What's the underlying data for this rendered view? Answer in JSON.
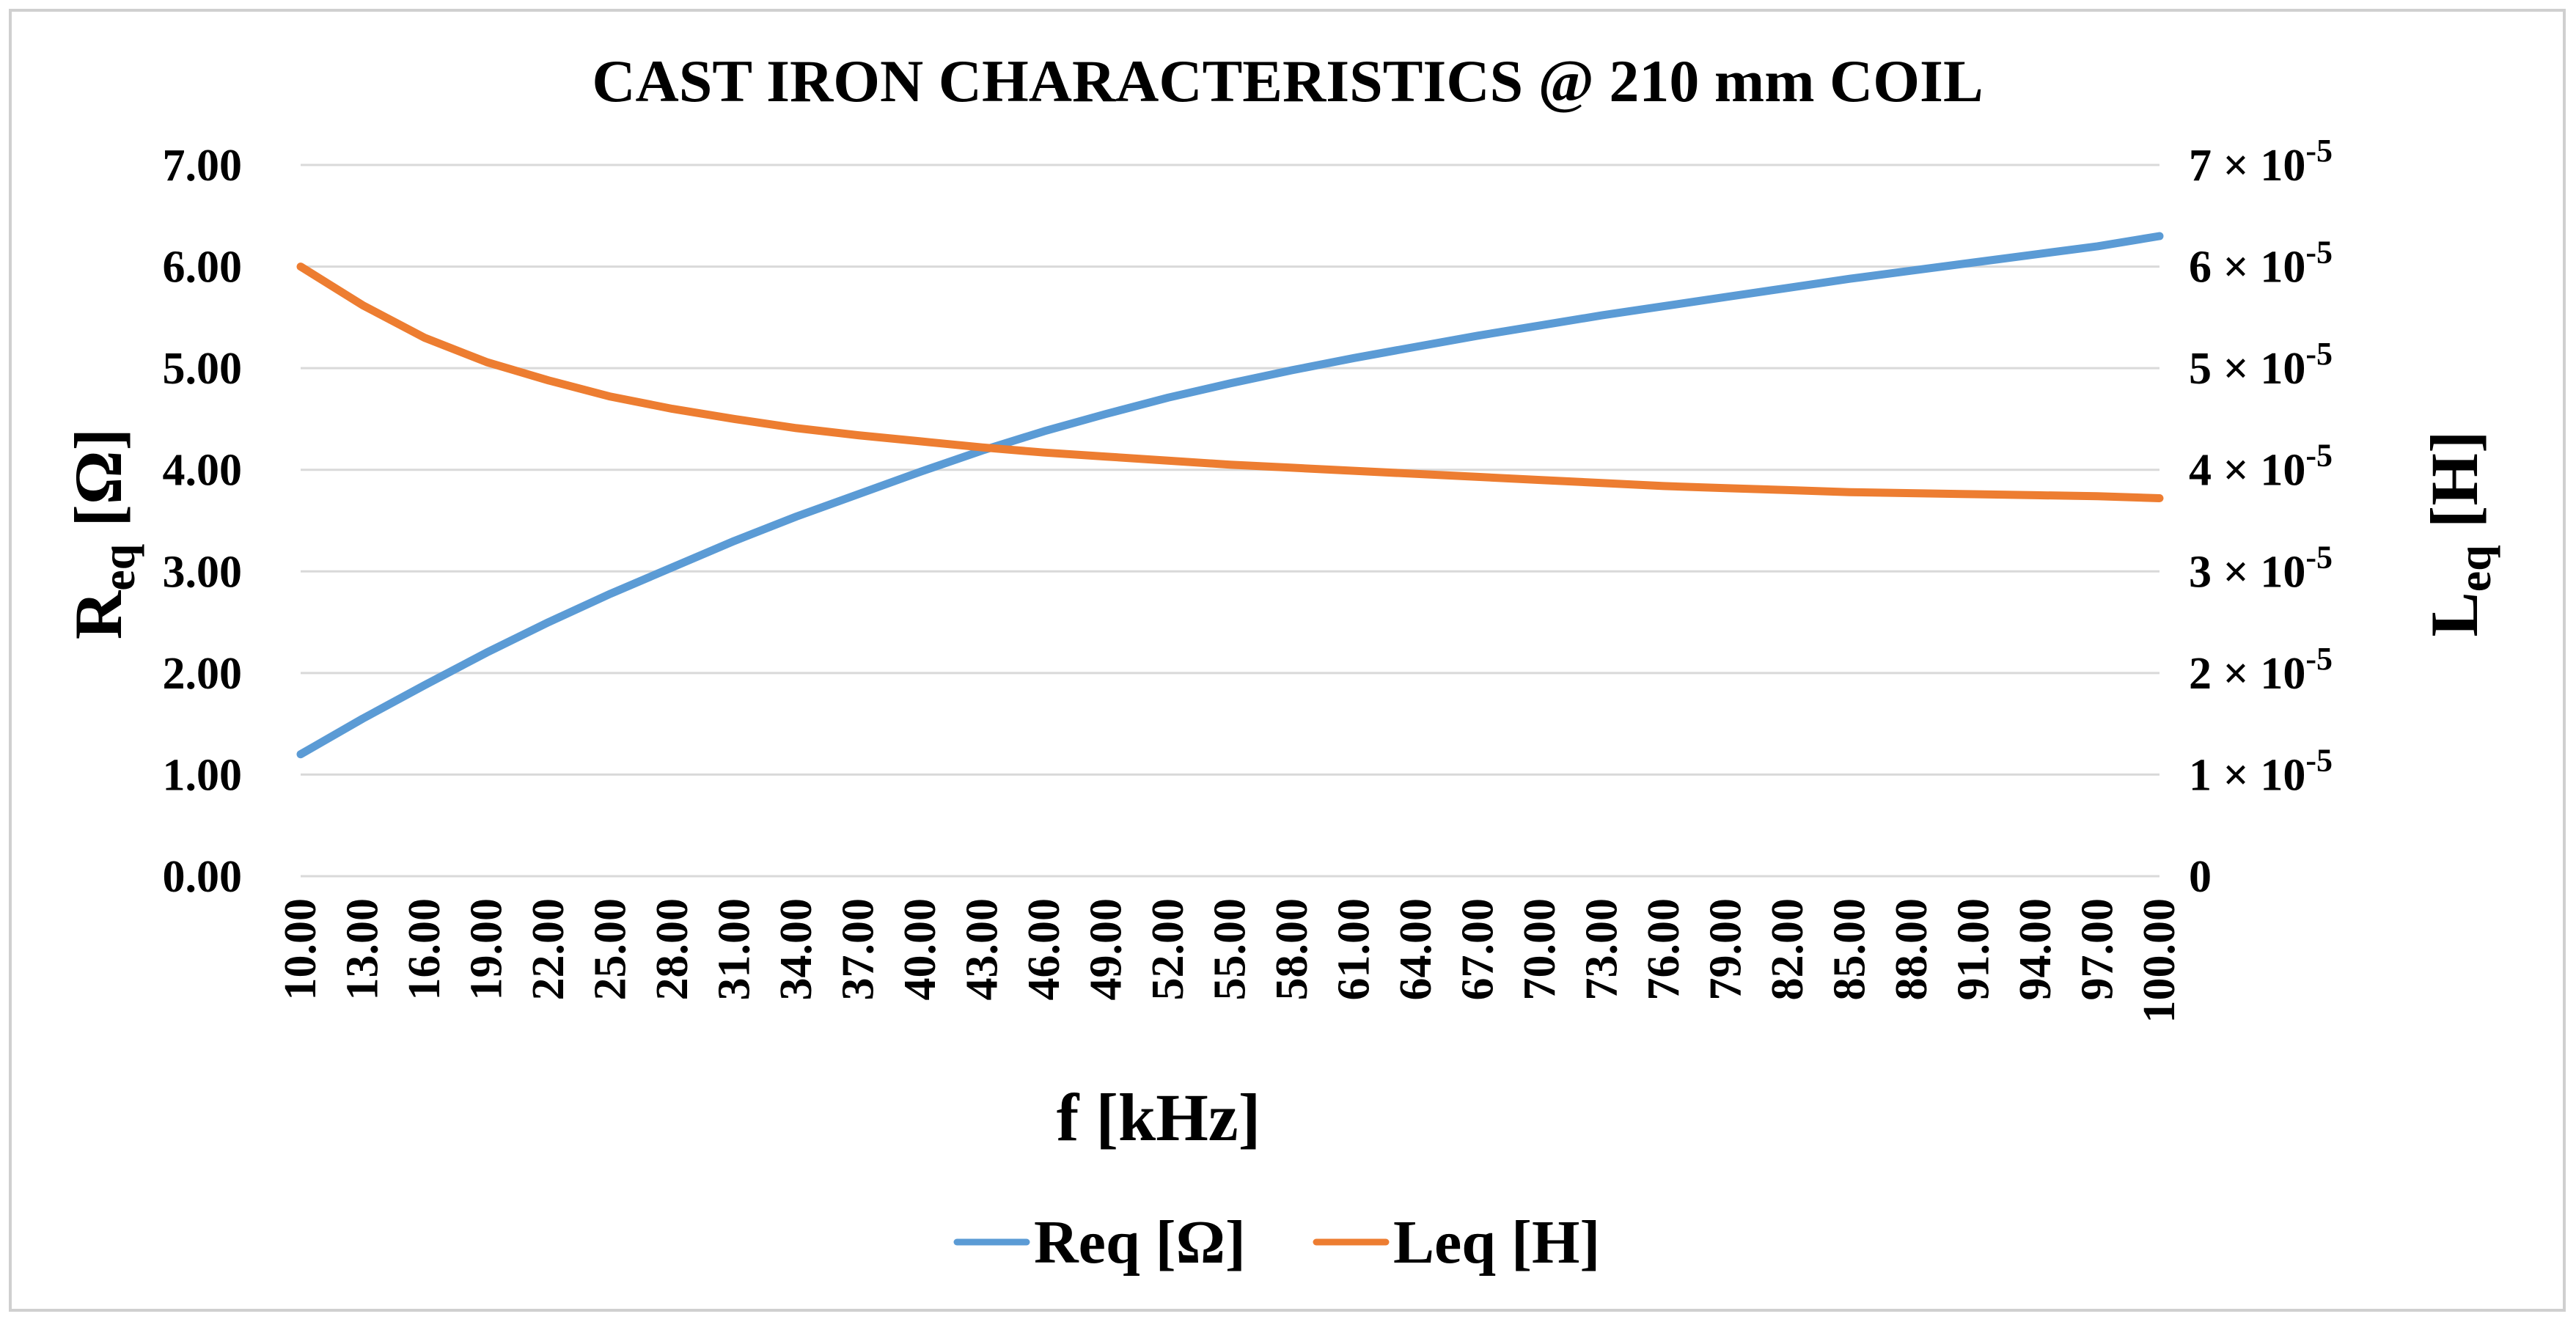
{
  "chart_data": {
    "type": "line",
    "title": "CAST IRON CHARACTERISTICS @ 210 mm COIL",
    "xlabel": "f [kHz]",
    "ylabel": {
      "base": "R",
      "sub": "eq",
      "unit": " [Ω]"
    },
    "y2label": {
      "base": "L",
      "sub": "eq",
      "unit": " [H]"
    },
    "ylim": [
      0,
      7
    ],
    "y2lim": [
      0,
      7e-05
    ],
    "grid": true,
    "x_tick_labels": [
      "10.00",
      "13.00",
      "16.00",
      "19.00",
      "22.00",
      "25.00",
      "28.00",
      "31.00",
      "34.00",
      "37.00",
      "40.00",
      "43.00",
      "46.00",
      "49.00",
      "52.00",
      "55.00",
      "58.00",
      "61.00",
      "64.00",
      "67.00",
      "70.00",
      "73.00",
      "76.00",
      "79.00",
      "82.00",
      "85.00",
      "88.00",
      "91.00",
      "94.00",
      "97.00",
      "100.00"
    ],
    "y_tick_labels": [
      "0.00",
      "1.00",
      "2.00",
      "3.00",
      "4.00",
      "5.00",
      "6.00",
      "7.00"
    ],
    "y2_tick_labels": [
      {
        "coef": "0",
        "exp": ""
      },
      {
        "coef": "1 × 10",
        "exp": "-5"
      },
      {
        "coef": "2 × 10",
        "exp": "-5"
      },
      {
        "coef": "3 × 10",
        "exp": "-5"
      },
      {
        "coef": "4 × 10",
        "exp": "-5"
      },
      {
        "coef": "5 × 10",
        "exp": "-5"
      },
      {
        "coef": "6 × 10",
        "exp": "-5"
      },
      {
        "coef": "7 × 10",
        "exp": "-5"
      }
    ],
    "x": [
      10,
      13,
      16,
      19,
      22,
      25,
      28,
      31,
      34,
      37,
      40,
      43,
      46,
      49,
      52,
      55,
      58,
      61,
      64,
      67,
      70,
      73,
      76,
      79,
      82,
      85,
      88,
      91,
      94,
      97,
      100
    ],
    "series": [
      {
        "name": "Req [Ω]",
        "axis": "left",
        "color": "#5b9bd5",
        "values": [
          1.2,
          1.55,
          1.88,
          2.2,
          2.5,
          2.78,
          3.04,
          3.3,
          3.54,
          3.76,
          3.98,
          4.19,
          4.38,
          4.55,
          4.71,
          4.85,
          4.98,
          5.1,
          5.21,
          5.32,
          5.42,
          5.52,
          5.61,
          5.7,
          5.79,
          5.88,
          5.96,
          6.04,
          6.12,
          6.2,
          6.3
        ]
      },
      {
        "name": "Leq [H]",
        "axis": "right",
        "color": "#ed7d31",
        "values": [
          6e-05,
          5.62e-05,
          5.3e-05,
          5.06e-05,
          4.88e-05,
          4.72e-05,
          4.6e-05,
          4.5e-05,
          4.41e-05,
          4.34e-05,
          4.28e-05,
          4.22e-05,
          4.17e-05,
          4.13e-05,
          4.09e-05,
          4.05e-05,
          4.02e-05,
          3.99e-05,
          3.96e-05,
          3.93e-05,
          3.9e-05,
          3.87e-05,
          3.84e-05,
          3.82e-05,
          3.8e-05,
          3.78e-05,
          3.77e-05,
          3.76e-05,
          3.75e-05,
          3.74e-05,
          3.72e-05
        ]
      }
    ],
    "legend_position": "bottom-center"
  }
}
